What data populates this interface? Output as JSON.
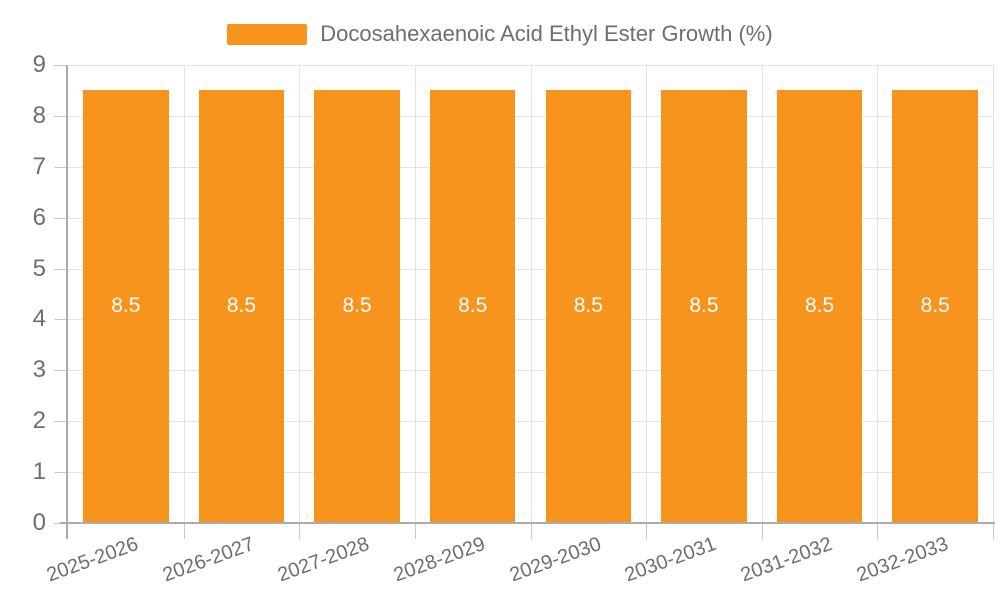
{
  "legend": {
    "label": "Docosahexaenoic Acid Ethyl Ester Growth (%)"
  },
  "chart_data": {
    "type": "bar",
    "title": "Docosahexaenoic Acid Ethyl Ester Growth (%)",
    "categories": [
      "2025-2026",
      "2026-2027",
      "2027-2028",
      "2028-2029",
      "2029-2030",
      "2030-2031",
      "2031-2032",
      "2032-2033"
    ],
    "series": [
      {
        "name": "Docosahexaenoic Acid Ethyl Ester Growth (%)",
        "values": [
          8.5,
          8.5,
          8.5,
          8.5,
          8.5,
          8.5,
          8.5,
          8.5
        ]
      }
    ],
    "data_labels": [
      "8.5",
      "8.5",
      "8.5",
      "8.5",
      "8.5",
      "8.5",
      "8.5",
      "8.5"
    ],
    "xlabel": "",
    "ylabel": "",
    "ylim": [
      0,
      9
    ],
    "yticks": [
      0,
      1,
      2,
      3,
      4,
      5,
      6,
      7,
      8,
      9
    ],
    "grid": true,
    "legend_position": "top-center",
    "colors": {
      "bar": "#F7941E",
      "bar_label": "#FFFFFF",
      "axis_line": "#ABABAB",
      "tick_line": "#C9C9C9",
      "grid_line": "#E4E4E4",
      "tick_text": "#6E6E6E",
      "background": "#FFFFFF"
    }
  }
}
